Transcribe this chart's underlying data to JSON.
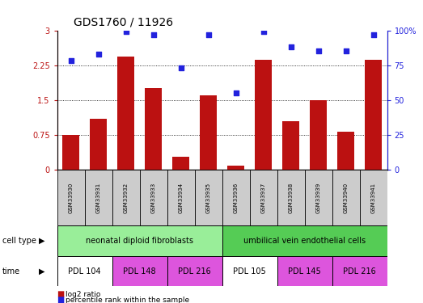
{
  "title": "GDS1760 / 11926",
  "samples": [
    "GSM33930",
    "GSM33931",
    "GSM33932",
    "GSM33933",
    "GSM33934",
    "GSM33935",
    "GSM33936",
    "GSM33937",
    "GSM33938",
    "GSM33939",
    "GSM33940",
    "GSM33941"
  ],
  "log2_ratio": [
    0.75,
    1.1,
    2.43,
    1.75,
    0.28,
    1.6,
    0.08,
    2.37,
    1.05,
    1.5,
    0.82,
    2.37
  ],
  "percentile_rank": [
    78,
    83,
    99,
    97,
    73,
    97,
    55,
    99,
    88,
    85,
    85,
    97
  ],
  "bar_color": "#bb1111",
  "dot_color": "#2222dd",
  "ylim_left": [
    0,
    3
  ],
  "ylim_right": [
    0,
    100
  ],
  "yticks_left": [
    0,
    0.75,
    1.5,
    2.25,
    3
  ],
  "yticks_right": [
    0,
    25,
    50,
    75,
    100
  ],
  "ytick_labels_left": [
    "0",
    "0.75",
    "1.5",
    "2.25",
    "3"
  ],
  "ytick_labels_right": [
    "0",
    "25",
    "50",
    "75",
    "100%"
  ],
  "cell_type_groups": [
    {
      "label": "neonatal diploid fibroblasts",
      "start": 0,
      "end": 5,
      "color": "#99ee99"
    },
    {
      "label": "umbilical vein endothelial cells",
      "start": 6,
      "end": 11,
      "color": "#55cc55"
    }
  ],
  "time_groups": [
    {
      "label": "PDL 104",
      "start": 0,
      "end": 1,
      "color": "#ffffff"
    },
    {
      "label": "PDL 148",
      "start": 2,
      "end": 3,
      "color": "#dd55dd"
    },
    {
      "label": "PDL 216",
      "start": 4,
      "end": 5,
      "color": "#dd55dd"
    },
    {
      "label": "PDL 105",
      "start": 6,
      "end": 7,
      "color": "#ffffff"
    },
    {
      "label": "PDL 145",
      "start": 8,
      "end": 9,
      "color": "#dd55dd"
    },
    {
      "label": "PDL 216",
      "start": 10,
      "end": 11,
      "color": "#dd55dd"
    }
  ],
  "cell_type_row_label": "cell type",
  "time_row_label": "time",
  "legend_red": "log2 ratio",
  "legend_blue": "percentile rank within the sample",
  "background_color": "#ffffff",
  "sample_box_color": "#cccccc"
}
